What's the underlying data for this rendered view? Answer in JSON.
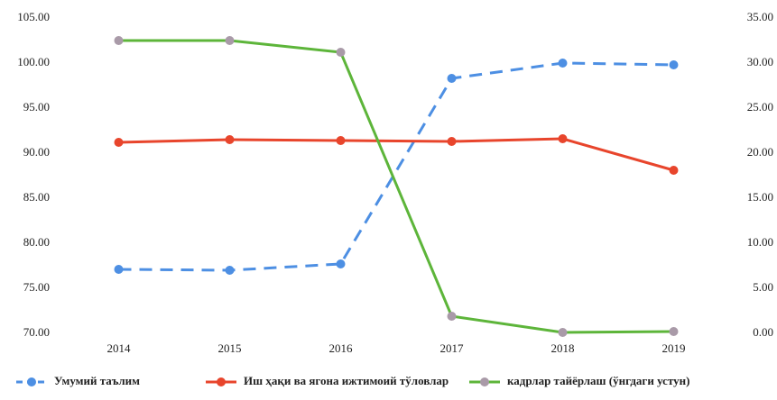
{
  "chart_data": {
    "type": "line",
    "categories": [
      "2014",
      "2015",
      "2016",
      "2017",
      "2018",
      "2019"
    ],
    "series": [
      {
        "name": "Умумий таълим",
        "color": "#4d8fe3",
        "marker_color": "#4d8fe3",
        "dashed": true,
        "axis": "y",
        "values": [
          77.1,
          77.0,
          77.7,
          98.3,
          100.0,
          99.8
        ]
      },
      {
        "name": "Иш ҳақи ва ягона ижтимоий тўловлар",
        "color": "#e8452c",
        "marker_color": "#e8452c",
        "dashed": false,
        "axis": "y",
        "values": [
          91.2,
          91.5,
          91.4,
          91.3,
          91.6,
          88.1
        ]
      },
      {
        "name": "кадрлар тайёрлаш (ўнгдаги устун)",
        "color": "#5db53a",
        "marker_color": "#a99aa8",
        "dashed": false,
        "axis": "y2",
        "values": [
          32.5,
          32.5,
          31.2,
          1.9,
          0.1,
          0.2
        ]
      }
    ],
    "ylim": [
      70,
      105
    ],
    "yticks": [
      {
        "value": 70,
        "label": "70.00"
      },
      {
        "value": 75,
        "label": "75.00"
      },
      {
        "value": 80,
        "label": "80.00"
      },
      {
        "value": 85,
        "label": "85.00"
      },
      {
        "value": 90,
        "label": "90.00"
      },
      {
        "value": 95,
        "label": "95.00"
      },
      {
        "value": 100,
        "label": "100.00"
      },
      {
        "value": 105,
        "label": "105.00"
      }
    ],
    "y2lim": [
      0,
      35
    ],
    "y2ticks": [
      {
        "value": 0,
        "label": "0.00"
      },
      {
        "value": 5,
        "label": "5.00"
      },
      {
        "value": 10,
        "label": "10.00"
      },
      {
        "value": 15,
        "label": "15.00"
      },
      {
        "value": 20,
        "label": "20.00"
      },
      {
        "value": 25,
        "label": "25.00"
      },
      {
        "value": 30,
        "label": "30.00"
      },
      {
        "value": 35,
        "label": "35.00"
      }
    ],
    "legend": "bottom"
  }
}
